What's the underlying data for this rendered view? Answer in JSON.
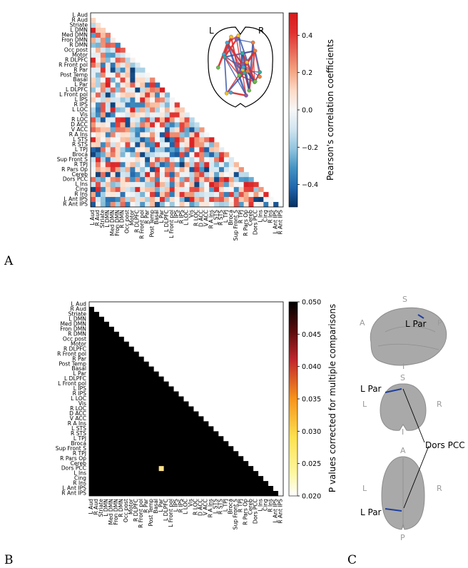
{
  "panels": {
    "a": "A",
    "b": "B",
    "c": "C"
  },
  "chart_data": [
    {
      "type": "heatmap",
      "panel": "A",
      "regions": [
        "L Aud",
        "R Aud",
        "Striate",
        "L DMN",
        "Med DMN",
        "Fron DMN",
        "R DMN",
        "Occ post",
        "Motor",
        "R DLPFC",
        "R Front pol",
        "R Par",
        "Post Temp",
        "Basal",
        "L Par",
        "L DLPFC",
        "L Front pol",
        "L IPS",
        "R IPS",
        "L LOC",
        "Vis",
        "R LOC",
        "D ACC",
        "V ACC",
        "R A Ins",
        "L STS",
        "R STS",
        "L TPJ",
        "Broca",
        "Sup Front S",
        "R TPJ",
        "R Pars Op",
        "Cereb",
        "Dors PCC",
        "L Ins",
        "Cing",
        "R Ins",
        "L Ant IPS",
        "R Ant IPS"
      ],
      "triangle": "lower",
      "colorbar": {
        "label": "Pearson's correlation coefficients",
        "ticks": [
          -0.4,
          -0.2,
          0.0,
          0.2,
          0.4
        ],
        "tick_labels": [
          "−0.4",
          "−0.2",
          "0.0",
          "0.2",
          "0.4"
        ],
        "range": [
          -0.52,
          0.52
        ],
        "colormap": "RdBu_r"
      },
      "inset": {
        "left": "L",
        "right": "R"
      }
    },
    {
      "type": "heatmap",
      "panel": "B",
      "triangle": "lower",
      "background_value": 0.05,
      "significant_cells": [
        {
          "row": "Dors PCC",
          "col": "L Par",
          "value": 0.023
        }
      ],
      "colorbar": {
        "label": "P values corrected for multiple comparisons",
        "ticks": [
          0.02,
          0.025,
          0.03,
          0.035,
          0.04,
          0.045,
          0.05
        ],
        "tick_labels": [
          "0.020",
          "0.025",
          "0.030",
          "0.035",
          "0.040",
          "0.045",
          "0.050"
        ],
        "range": [
          0.02,
          0.05
        ],
        "colormap": "hot"
      }
    }
  ],
  "brains": {
    "lateral": {
      "S": "S",
      "I": "I",
      "A": "A",
      "P": "P",
      "label": "L Par"
    },
    "coronal": {
      "S": "S",
      "I": "I",
      "L": "L",
      "R": "R",
      "label": "L Par"
    },
    "axial": {
      "A": "A",
      "P": "P",
      "L": "L",
      "R": "R",
      "label": "L Par"
    },
    "pcc_label": "Dors PCC"
  },
  "colors": {
    "pvalue_cell": "#fde28a",
    "matrix_black": "#000000",
    "connection_red": "#e0302f",
    "connection_blue": "#2e4fa8"
  }
}
